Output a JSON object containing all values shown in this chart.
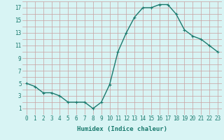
{
  "x": [
    0,
    1,
    2,
    3,
    4,
    5,
    6,
    7,
    8,
    9,
    10,
    11,
    12,
    13,
    14,
    15,
    16,
    17,
    18,
    19,
    20,
    21,
    22,
    23
  ],
  "y": [
    5,
    4.5,
    3.5,
    3.5,
    3,
    2,
    2,
    2,
    1,
    2,
    4.8,
    10,
    13,
    15.5,
    17,
    17,
    17.5,
    17.5,
    16,
    13.5,
    12.5,
    12,
    11,
    10
  ],
  "line_color": "#1a7a6e",
  "marker": "+",
  "marker_size": 3.5,
  "line_width": 1.0,
  "bg_color": "#d8f4f4",
  "grid_color_h": "#c8a0a0",
  "grid_color_v": "#c8a0a0",
  "xlabel": "Humidex (Indice chaleur)",
  "xlim": [
    -0.5,
    23.5
  ],
  "ylim": [
    0,
    18
  ],
  "xtick_labels": [
    "0",
    "1",
    "2",
    "3",
    "4",
    "5",
    "6",
    "7",
    "8",
    "9",
    "10",
    "11",
    "12",
    "13",
    "14",
    "15",
    "16",
    "17",
    "18",
    "19",
    "20",
    "21",
    "22",
    "23"
  ],
  "ytick_values": [
    1,
    3,
    5,
    7,
    9,
    11,
    13,
    15,
    17
  ],
  "tick_fontsize": 5.5,
  "xlabel_fontsize": 6.5,
  "tick_color": "#1a7a6e",
  "xlabel_color": "#1a7a6e"
}
